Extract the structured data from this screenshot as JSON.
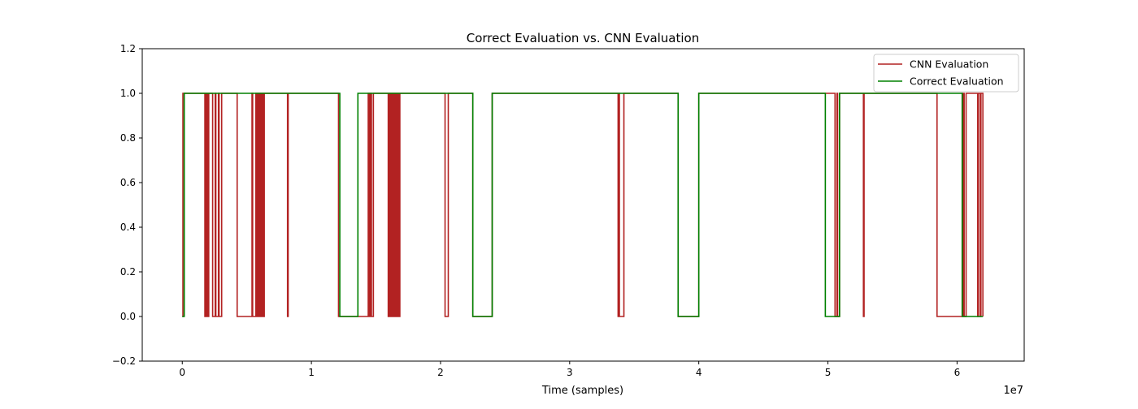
{
  "chart_data": {
    "type": "line",
    "title": "Correct Evaluation vs. CNN Evaluation",
    "xlabel": "Time (samples)",
    "ylabel": "",
    "x_offset_label": "1e7",
    "xlim": [
      -3100000,
      65200000
    ],
    "ylim": [
      -0.2,
      1.2
    ],
    "x_ticks": [
      0,
      10000000,
      20000000,
      30000000,
      40000000,
      50000000,
      60000000
    ],
    "x_tick_labels": [
      "0",
      "1",
      "2",
      "3",
      "4",
      "5",
      "6"
    ],
    "y_ticks": [
      -0.2,
      0.0,
      0.2,
      0.4,
      0.6,
      0.8,
      1.0,
      1.2
    ],
    "y_tick_labels": [
      "−0.2",
      "0.0",
      "0.2",
      "0.4",
      "0.6",
      "0.8",
      "1.0",
      "1.2"
    ],
    "grid": false,
    "legend_position": "top-right",
    "series": [
      {
        "name": "CNN Evaluation",
        "color": "#b22222",
        "x": [
          0,
          50000,
          200000,
          1700000,
          1750000,
          1800000,
          1850000,
          1950000,
          2000000,
          2050000,
          2100000,
          2300000,
          2350000,
          2550000,
          2600000,
          2800000,
          2850000,
          3050000,
          3100000,
          4200000,
          4250000,
          5400000,
          5450000,
          5700000,
          5750000,
          5800000,
          5850000,
          5950000,
          6000000,
          6100000,
          6150000,
          6250000,
          6300000,
          6350000,
          6400000,
          8100000,
          8150000,
          8200000,
          8250000,
          12100000,
          14400000,
          14450000,
          14500000,
          14550000,
          14600000,
          14650000,
          14800000,
          14850000,
          15900000,
          15950000,
          16000000,
          16050000,
          16150000,
          16200000,
          16300000,
          16350000,
          16450000,
          16500000,
          16550000,
          16600000,
          16700000,
          16750000,
          16850000,
          16900000,
          20300000,
          20350000,
          20600000,
          20650000,
          22500000,
          24000000,
          33700000,
          33750000,
          33800000,
          33850000,
          34200000,
          34250000,
          38400000,
          40000000,
          50500000,
          50550000,
          50700000,
          50750000,
          50900000,
          50950000,
          52700000,
          52750000,
          52800000,
          52850000,
          58400000,
          58450000,
          60400000,
          60450000,
          60500000,
          60550000,
          60700000,
          60750000,
          61600000,
          61650000,
          61800000,
          61850000,
          62000000
        ],
        "y": [
          0,
          1,
          1,
          1,
          0,
          1,
          0,
          1,
          0,
          1,
          1,
          1,
          0,
          1,
          0,
          1,
          0,
          1,
          1,
          1,
          0,
          1,
          0,
          1,
          0,
          1,
          0,
          1,
          0,
          1,
          0,
          1,
          0,
          1,
          1,
          1,
          0,
          1,
          1,
          0,
          1,
          0,
          1,
          0,
          1,
          0,
          1,
          1,
          1,
          0,
          1,
          0,
          1,
          0,
          1,
          0,
          1,
          0,
          1,
          0,
          1,
          0,
          1,
          1,
          1,
          0,
          1,
          1,
          0,
          1,
          1,
          0,
          1,
          0,
          1,
          1,
          0,
          1,
          1,
          0,
          1,
          0,
          1,
          1,
          1,
          0,
          1,
          1,
          1,
          0,
          1,
          0,
          1,
          0,
          1,
          1,
          0,
          1,
          0,
          1,
          0
        ]
      },
      {
        "name": "Correct Evaluation",
        "color": "#008000",
        "x": [
          0,
          150000,
          12200000,
          13600000,
          22500000,
          24000000,
          38400000,
          40000000,
          49800000,
          50900000,
          60400000,
          62000000
        ],
        "y": [
          0,
          1,
          0,
          1,
          0,
          1,
          0,
          1,
          0,
          1,
          0,
          0
        ]
      }
    ]
  }
}
